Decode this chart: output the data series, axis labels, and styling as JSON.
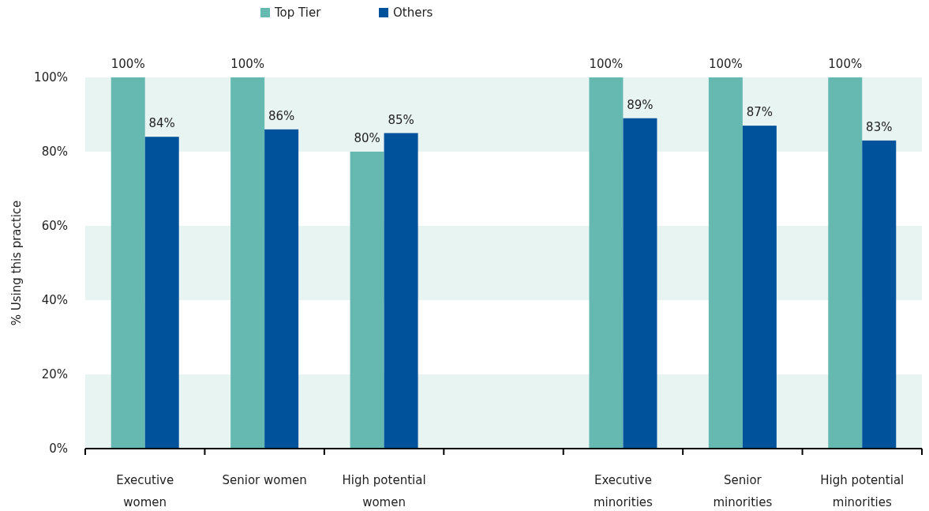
{
  "chart_data": {
    "type": "bar",
    "ylabel": "% Using this practice",
    "categories": [
      "Executive women",
      "Senior women",
      "High potential women",
      null,
      "Executive minorities",
      "Senior minorities",
      "High potential minorities"
    ],
    "series": [
      {
        "name": "Top Tier",
        "color": "#66b9b1",
        "values": [
          100,
          100,
          80,
          null,
          100,
          100,
          100
        ]
      },
      {
        "name": "Others",
        "color": "#00539b",
        "values": [
          84,
          86,
          85,
          null,
          89,
          87,
          83
        ]
      }
    ],
    "ylim": [
      0,
      100
    ],
    "yticks": [
      {
        "value": 0,
        "label": "0%"
      },
      {
        "value": 20,
        "label": "20%"
      },
      {
        "value": 40,
        "label": "40%"
      },
      {
        "value": 60,
        "label": "60%"
      },
      {
        "value": 80,
        "label": "80%"
      },
      {
        "value": 100,
        "label": "100%"
      }
    ],
    "bands": [
      {
        "axis": "y",
        "from": 0,
        "to": 20,
        "color": "#e8f4f2"
      },
      {
        "axis": "y",
        "from": 40,
        "to": 60,
        "color": "#e8f4f2"
      },
      {
        "axis": "y",
        "from": 80,
        "to": 100,
        "color": "#e8f4f2"
      }
    ],
    "value_labels": [
      [
        "100%",
        "100%",
        "80%",
        null,
        "100%",
        "100%",
        "100%"
      ],
      [
        "84%",
        "86%",
        "85%",
        null,
        "89%",
        "87%",
        "83%"
      ]
    ],
    "legend": "top"
  }
}
